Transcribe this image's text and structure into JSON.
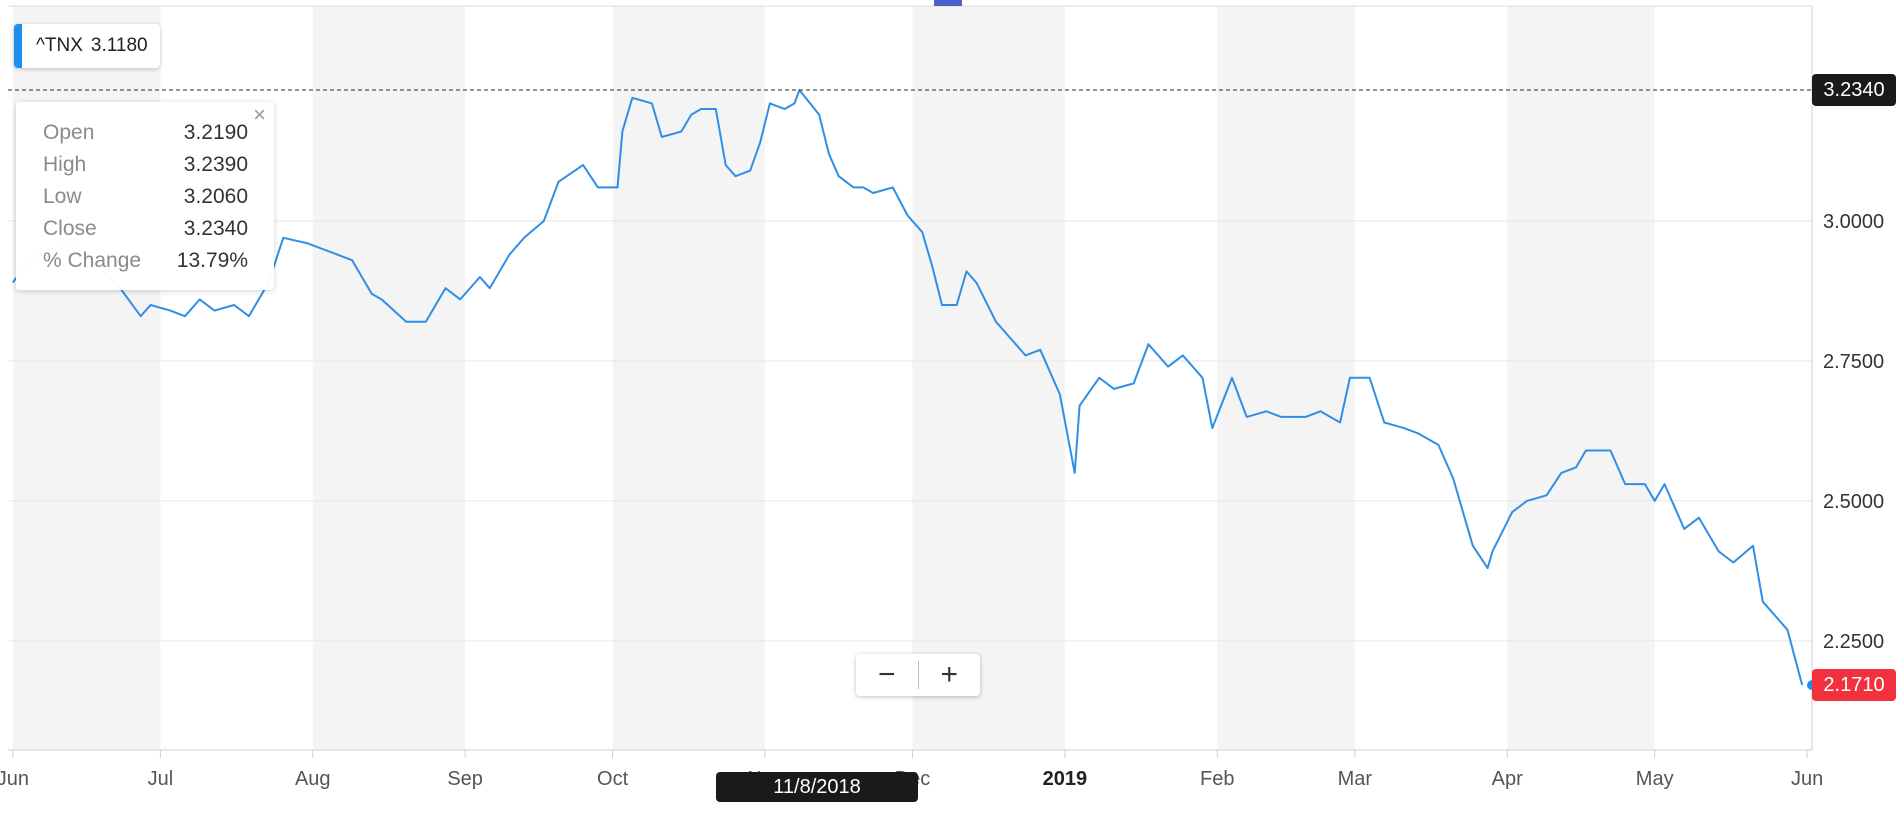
{
  "legend": {
    "symbol": "^TNX",
    "value": "3.1180"
  },
  "tooltip": {
    "rows": [
      {
        "label": "Open",
        "value": "3.2190"
      },
      {
        "label": "High",
        "value": "3.2390"
      },
      {
        "label": "Low",
        "value": "3.2060"
      },
      {
        "label": "Close",
        "value": "3.2340"
      },
      {
        "label": "% Change",
        "value": "13.79%"
      }
    ],
    "close_glyph": "×"
  },
  "zoom": {
    "minus_label": "−",
    "plus_label": "+"
  },
  "crosshair": {
    "date_label": "11/8/2018",
    "price_label": "3.2340",
    "price": 3.234
  },
  "last_price": {
    "label": "2.1710",
    "value": 2.171
  },
  "colors": {
    "line": "#2f8fe6",
    "last_price_bg": "#f2313f",
    "crosshair_bg": "#1a1a1a",
    "band": "#f4f4f4",
    "accent": "#1e8ff0"
  },
  "chart_data": {
    "type": "line",
    "title": "",
    "xlabel": "",
    "ylabel": "",
    "ylim": [
      2.0,
      3.4
    ],
    "yticks": [
      2.25,
      2.5,
      2.75,
      3.0
    ],
    "ytick_labels": [
      "2.2500",
      "2.5000",
      "2.7500",
      "3.0000"
    ],
    "xticks": [
      {
        "label": "Jun",
        "date": "2018-06-01"
      },
      {
        "label": "Jul",
        "date": "2018-07-01"
      },
      {
        "label": "Aug",
        "date": "2018-08-01"
      },
      {
        "label": "Sep",
        "date": "2018-09-01"
      },
      {
        "label": "Oct",
        "date": "2018-10-01"
      },
      {
        "label": "Nov",
        "date": "2018-11-01"
      },
      {
        "label": "Dec",
        "date": "2018-12-01"
      },
      {
        "label": "2019",
        "date": "2019-01-01",
        "bold": true
      },
      {
        "label": "Feb",
        "date": "2019-02-01"
      },
      {
        "label": "Mar",
        "date": "2019-03-01"
      },
      {
        "label": "Apr",
        "date": "2019-04-01"
      },
      {
        "label": "May",
        "date": "2019-05-01"
      },
      {
        "label": "Jun",
        "date": "2019-06-01"
      }
    ],
    "grid": true,
    "alternating_month_bands": true,
    "series": [
      {
        "name": "^TNX",
        "points": [
          [
            "2018-06-01",
            2.89
          ],
          [
            "2018-06-05",
            2.94
          ],
          [
            "2018-06-08",
            2.93
          ],
          [
            "2018-06-13",
            2.97
          ],
          [
            "2018-06-18",
            2.92
          ],
          [
            "2018-06-22",
            2.89
          ],
          [
            "2018-06-27",
            2.83
          ],
          [
            "2018-06-29",
            2.85
          ],
          [
            "2018-07-03",
            2.84
          ],
          [
            "2018-07-06",
            2.83
          ],
          [
            "2018-07-09",
            2.86
          ],
          [
            "2018-07-12",
            2.84
          ],
          [
            "2018-07-16",
            2.85
          ],
          [
            "2018-07-19",
            2.83
          ],
          [
            "2018-07-23",
            2.89
          ],
          [
            "2018-07-26",
            2.97
          ],
          [
            "2018-07-31",
            2.96
          ],
          [
            "2018-08-03",
            2.95
          ],
          [
            "2018-08-06",
            2.94
          ],
          [
            "2018-08-09",
            2.93
          ],
          [
            "2018-08-13",
            2.87
          ],
          [
            "2018-08-15",
            2.86
          ],
          [
            "2018-08-20",
            2.82
          ],
          [
            "2018-08-22",
            2.82
          ],
          [
            "2018-08-24",
            2.82
          ],
          [
            "2018-08-28",
            2.88
          ],
          [
            "2018-08-31",
            2.86
          ],
          [
            "2018-09-04",
            2.9
          ],
          [
            "2018-09-06",
            2.88
          ],
          [
            "2018-09-10",
            2.94
          ],
          [
            "2018-09-13",
            2.97
          ],
          [
            "2018-09-17",
            3.0
          ],
          [
            "2018-09-20",
            3.07
          ],
          [
            "2018-09-25",
            3.1
          ],
          [
            "2018-09-28",
            3.06
          ],
          [
            "2018-10-02",
            3.06
          ],
          [
            "2018-10-03",
            3.16
          ],
          [
            "2018-10-05",
            3.22
          ],
          [
            "2018-10-09",
            3.21
          ],
          [
            "2018-10-11",
            3.15
          ],
          [
            "2018-10-15",
            3.16
          ],
          [
            "2018-10-17",
            3.19
          ],
          [
            "2018-10-19",
            3.2
          ],
          [
            "2018-10-22",
            3.2
          ],
          [
            "2018-10-24",
            3.1
          ],
          [
            "2018-10-26",
            3.08
          ],
          [
            "2018-10-29",
            3.09
          ],
          [
            "2018-10-31",
            3.14
          ],
          [
            "2018-11-02",
            3.21
          ],
          [
            "2018-11-05",
            3.2
          ],
          [
            "2018-11-07",
            3.21
          ],
          [
            "2018-11-08",
            3.234
          ],
          [
            "2018-11-12",
            3.19
          ],
          [
            "2018-11-14",
            3.12
          ],
          [
            "2018-11-16",
            3.08
          ],
          [
            "2018-11-19",
            3.06
          ],
          [
            "2018-11-21",
            3.06
          ],
          [
            "2018-11-23",
            3.05
          ],
          [
            "2018-11-27",
            3.06
          ],
          [
            "2018-11-30",
            3.01
          ],
          [
            "2018-12-03",
            2.98
          ],
          [
            "2018-12-05",
            2.92
          ],
          [
            "2018-12-07",
            2.85
          ],
          [
            "2018-12-10",
            2.85
          ],
          [
            "2018-12-12",
            2.91
          ],
          [
            "2018-12-14",
            2.89
          ],
          [
            "2018-12-18",
            2.82
          ],
          [
            "2018-12-21",
            2.79
          ],
          [
            "2018-12-24",
            2.76
          ],
          [
            "2018-12-27",
            2.77
          ],
          [
            "2018-12-31",
            2.69
          ],
          [
            "2019-01-03",
            2.55
          ],
          [
            "2019-01-04",
            2.67
          ],
          [
            "2019-01-08",
            2.72
          ],
          [
            "2019-01-11",
            2.7
          ],
          [
            "2019-01-15",
            2.71
          ],
          [
            "2019-01-18",
            2.78
          ],
          [
            "2019-01-22",
            2.74
          ],
          [
            "2019-01-25",
            2.76
          ],
          [
            "2019-01-29",
            2.72
          ],
          [
            "2019-01-31",
            2.63
          ],
          [
            "2019-02-04",
            2.72
          ],
          [
            "2019-02-07",
            2.65
          ],
          [
            "2019-02-11",
            2.66
          ],
          [
            "2019-02-14",
            2.65
          ],
          [
            "2019-02-19",
            2.65
          ],
          [
            "2019-02-22",
            2.66
          ],
          [
            "2019-02-26",
            2.64
          ],
          [
            "2019-02-28",
            2.72
          ],
          [
            "2019-03-04",
            2.72
          ],
          [
            "2019-03-07",
            2.64
          ],
          [
            "2019-03-11",
            2.63
          ],
          [
            "2019-03-14",
            2.62
          ],
          [
            "2019-03-18",
            2.6
          ],
          [
            "2019-03-21",
            2.54
          ],
          [
            "2019-03-25",
            2.42
          ],
          [
            "2019-03-28",
            2.38
          ],
          [
            "2019-03-29",
            2.41
          ],
          [
            "2019-04-02",
            2.48
          ],
          [
            "2019-04-05",
            2.5
          ],
          [
            "2019-04-09",
            2.51
          ],
          [
            "2019-04-12",
            2.55
          ],
          [
            "2019-04-15",
            2.56
          ],
          [
            "2019-04-17",
            2.59
          ],
          [
            "2019-04-22",
            2.59
          ],
          [
            "2019-04-25",
            2.53
          ],
          [
            "2019-04-29",
            2.53
          ],
          [
            "2019-05-01",
            2.5
          ],
          [
            "2019-05-03",
            2.53
          ],
          [
            "2019-05-07",
            2.45
          ],
          [
            "2019-05-10",
            2.47
          ],
          [
            "2019-05-14",
            2.41
          ],
          [
            "2019-05-17",
            2.39
          ],
          [
            "2019-05-21",
            2.42
          ],
          [
            "2019-05-23",
            2.32
          ],
          [
            "2019-05-28",
            2.27
          ],
          [
            "2019-05-31",
            2.171
          ]
        ]
      }
    ]
  }
}
